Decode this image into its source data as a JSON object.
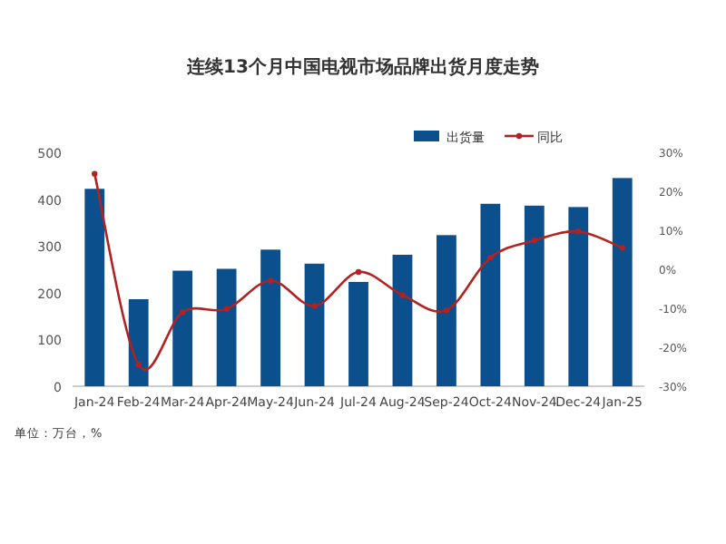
{
  "chart_data": {
    "type": "bar",
    "title": "连续13个月中国电视市场品牌出货月度走势",
    "categories": [
      "Jan-24",
      "Feb-24",
      "Mar-24",
      "Apr-24",
      "May-24",
      "Jun-24",
      "Jul-24",
      "Aug-24",
      "Sep-24",
      "Oct-24",
      "Nov-24",
      "Dec-24",
      "Jan-25"
    ],
    "series": [
      {
        "name": "出货量",
        "color": "#0b4f8c",
        "values": [
          422,
          186,
          247,
          251,
          292,
          262,
          223,
          281,
          323,
          390,
          386,
          383,
          445
        ]
      },
      {
        "name": "同比",
        "color": "#b22222",
        "type": "line",
        "axis": "y2",
        "values": [
          24.5,
          -24.5,
          -11,
          -10.2,
          -2.9,
          -9.4,
          -0.7,
          -6.6,
          -10.5,
          3,
          7.4,
          9.7,
          5.5
        ]
      }
    ],
    "ylim": [
      0,
      500
    ],
    "yticks": [
      0,
      100,
      200,
      300,
      400,
      500
    ],
    "y2lim": [
      -30,
      30
    ],
    "y2ticks": [
      {
        "value": -30,
        "label": "-30%"
      },
      {
        "value": -20,
        "label": "-20%"
      },
      {
        "value": -10,
        "label": "-10%"
      },
      {
        "value": 0,
        "label": "0%"
      },
      {
        "value": 10,
        "label": "10%"
      },
      {
        "value": 20,
        "label": "20%"
      },
      {
        "value": 30,
        "label": "30%"
      }
    ],
    "legend": "top right",
    "marker": "circle",
    "annotations": [
      "单位：万台，%"
    ]
  }
}
